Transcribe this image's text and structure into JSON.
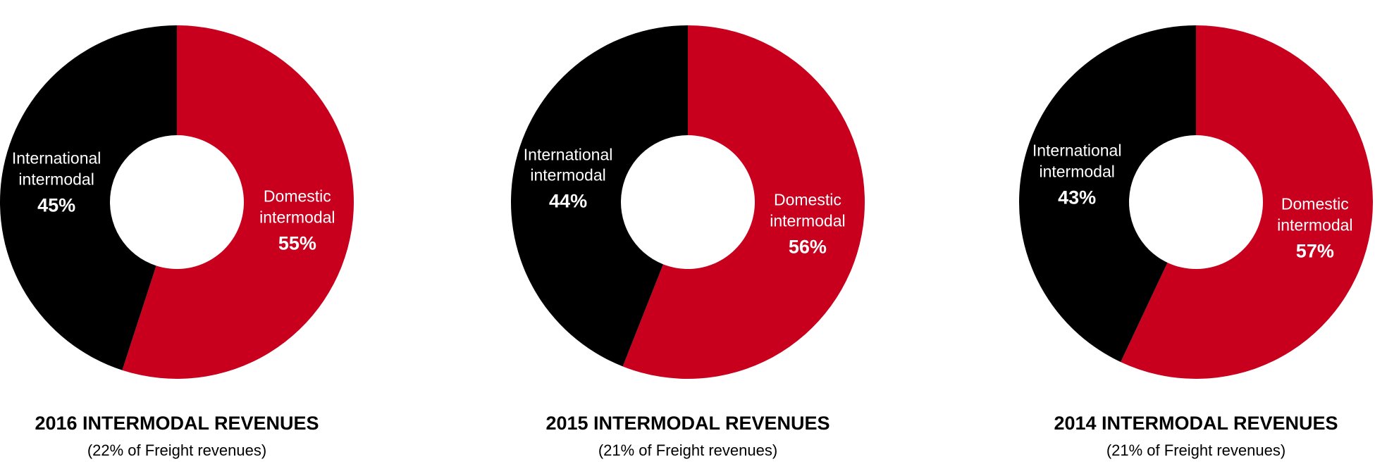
{
  "chart_data": [
    {
      "type": "donut",
      "title": "2016 INTERMODAL REVENUES",
      "subtitle": "(22% of Freight revenues)",
      "categories": [
        "Domestic intermodal",
        "International intermodal"
      ],
      "values": [
        55,
        45
      ],
      "value_labels": [
        "55%",
        "45%"
      ],
      "colors": [
        "#c8001e",
        "#000000"
      ]
    },
    {
      "type": "donut",
      "title": "2015 INTERMODAL REVENUES",
      "subtitle": "(21% of Freight revenues)",
      "categories": [
        "Domestic intermodal",
        "International intermodal"
      ],
      "values": [
        56,
        44
      ],
      "value_labels": [
        "56%",
        "44%"
      ],
      "colors": [
        "#c8001e",
        "#000000"
      ]
    },
    {
      "type": "donut",
      "title": "2014 INTERMODAL REVENUES",
      "subtitle": "(21% of Freight revenues)",
      "categories": [
        "Domestic intermodal",
        "International intermodal"
      ],
      "values": [
        57,
        43
      ],
      "value_labels": [
        "57%",
        "43%"
      ],
      "colors": [
        "#c8001e",
        "#000000"
      ]
    }
  ]
}
